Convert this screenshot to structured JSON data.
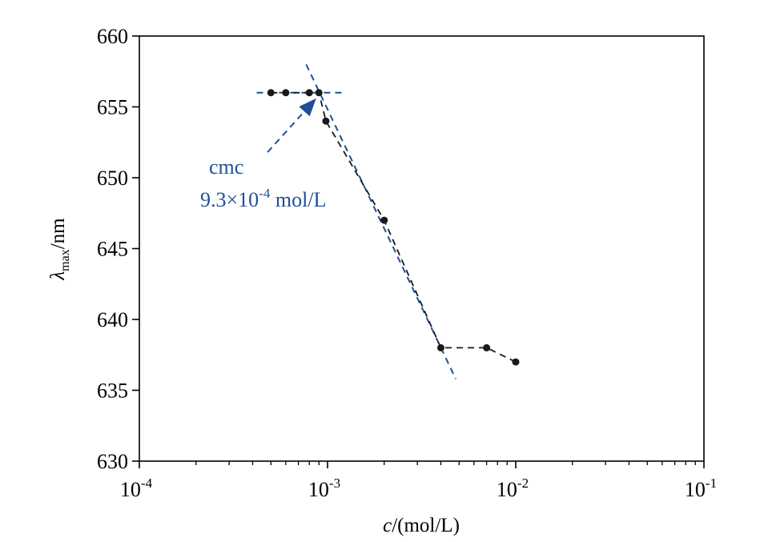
{
  "chart_data": {
    "type": "scatter",
    "title": "",
    "xscale": "log",
    "xlim": [
      0.0001,
      0.1
    ],
    "ylim": [
      630,
      660
    ],
    "xlabel": {
      "italic": "c",
      "rest": "/(mol/L)"
    },
    "ylabel": {
      "symbol": "λ",
      "subscript": "max",
      "rest": "/nm"
    },
    "y_ticks": [
      630,
      635,
      640,
      645,
      650,
      655,
      660
    ],
    "x_ticks": [
      {
        "value": 0.0001,
        "base": "10",
        "exp": "-4"
      },
      {
        "value": 0.001,
        "base": "10",
        "exp": "-3"
      },
      {
        "value": 0.01,
        "base": "10",
        "exp": "-2"
      },
      {
        "value": 0.1,
        "base": "10",
        "exp": "-1"
      }
    ],
    "series": [
      {
        "name": "λmax",
        "color": "#1a1a1a",
        "line_style": "dashed",
        "x": [
          0.0005,
          0.0006,
          0.0008,
          0.0009,
          0.00098,
          0.002,
          0.004,
          0.007,
          0.01
        ],
        "y": [
          656,
          656,
          656,
          656,
          654,
          647,
          638,
          638,
          637
        ]
      }
    ],
    "fit_lines": [
      {
        "name": "plateau-fit",
        "color": "#1f4e99",
        "x": [
          0.00042,
          0.00125
        ],
        "y": [
          656,
          656
        ]
      },
      {
        "name": "slope-fit",
        "color": "#1f4e99",
        "x": [
          0.00077,
          0.0048
        ],
        "y": [
          658,
          635.8
        ]
      }
    ],
    "annotation": {
      "line1": "cmc",
      "line2_mantissa": "9.3×10",
      "line2_exp": "-4",
      "line2_unit": " mol/L",
      "color": "#1f4e99",
      "arrow_from": {
        "x": 0.00048,
        "y": 651.8
      },
      "arrow_to": {
        "x": 0.00087,
        "y": 655.6
      }
    }
  }
}
